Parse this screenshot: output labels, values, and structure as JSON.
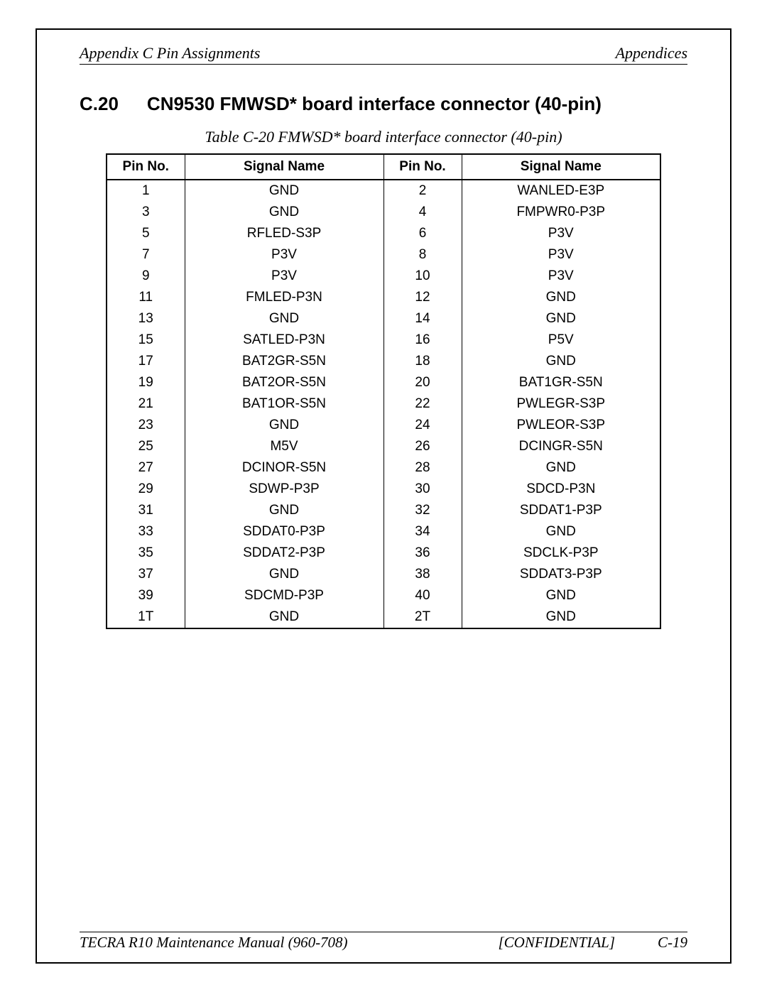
{
  "header": {
    "left": "Appendix C  Pin Assignments",
    "right": "Appendices"
  },
  "section": {
    "number": "C.20",
    "title": "CN9530  FMWSD* board interface connector (40-pin)"
  },
  "table": {
    "caption": "Table C-20 FMWSD* board interface connector (40-pin)",
    "columns": [
      "Pin No.",
      "Signal Name",
      "Pin No.",
      "Signal Name"
    ],
    "rows": [
      [
        "1",
        "GND",
        "2",
        "WANLED-E3P"
      ],
      [
        "3",
        "GND",
        "4",
        "FMPWR0-P3P"
      ],
      [
        "5",
        "RFLED-S3P",
        "6",
        "P3V"
      ],
      [
        "7",
        "P3V",
        "8",
        "P3V"
      ],
      [
        "9",
        "P3V",
        "10",
        "P3V"
      ],
      [
        "11",
        "FMLED-P3N",
        "12",
        "GND"
      ],
      [
        "13",
        "GND",
        "14",
        "GND"
      ],
      [
        "15",
        "SATLED-P3N",
        "16",
        "P5V"
      ],
      [
        "17",
        "BAT2GR-S5N",
        "18",
        "GND"
      ],
      [
        "19",
        "BAT2OR-S5N",
        "20",
        "BAT1GR-S5N"
      ],
      [
        "21",
        "BAT1OR-S5N",
        "22",
        "PWLEGR-S3P"
      ],
      [
        "23",
        "GND",
        "24",
        "PWLEOR-S3P"
      ],
      [
        "25",
        "M5V",
        "26",
        "DCINGR-S5N"
      ],
      [
        "27",
        "DCINOR-S5N",
        "28",
        "GND"
      ],
      [
        "29",
        "SDWP-P3P",
        "30",
        "SDCD-P3N"
      ],
      [
        "31",
        "GND",
        "32",
        "SDDAT1-P3P"
      ],
      [
        "33",
        "SDDAT0-P3P",
        "34",
        "GND"
      ],
      [
        "35",
        "SDDAT2-P3P",
        "36",
        "SDCLK-P3P"
      ],
      [
        "37",
        "GND",
        "38",
        "SDDAT3-P3P"
      ],
      [
        "39",
        "SDCMD-P3P",
        "40",
        "GND"
      ],
      [
        "1T",
        "GND",
        "2T",
        "GND"
      ]
    ]
  },
  "footer": {
    "left": "TECRA R10 Maintenance Manual (960-708)",
    "mid": "[CONFIDENTIAL]",
    "page": "C-19"
  }
}
